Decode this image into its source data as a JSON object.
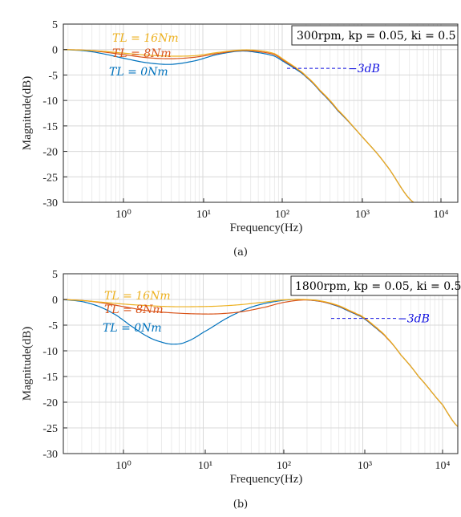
{
  "chart_data": [
    {
      "type": "line",
      "caption": "(a)",
      "xlabel": "Frequency(Hz)",
      "ylabel": "Magnitude(dB)",
      "x_scale": "log",
      "xlim": [
        0.15,
        20000
      ],
      "ylim": [
        -30,
        5
      ],
      "x_ticks": [
        "10⁰",
        "10¹",
        "10²",
        "10³",
        "10⁴"
      ],
      "y_ticks": [
        "5",
        "0",
        "-5",
        "-10",
        "-15",
        "-20",
        "-25",
        "-30"
      ],
      "grid": true,
      "legend_box": "300rpm, kp = 0.05, ki = 0.5",
      "marker_label": "−3dB",
      "marker_level_db": -3,
      "marker_x_range": [
        100,
        700
      ],
      "series": [
        {
          "name": "TL = 16Nm",
          "color": "#EDB120",
          "points": [
            [
              0.15,
              0
            ],
            [
              0.3,
              -0.1
            ],
            [
              0.5,
              -0.3
            ],
            [
              1,
              -0.7
            ],
            [
              2,
              -1.1
            ],
            [
              4,
              -1.3
            ],
            [
              8,
              -1.2
            ],
            [
              15,
              -0.6
            ],
            [
              30,
              -0.1
            ],
            [
              50,
              -0.2
            ],
            [
              80,
              -0.8
            ],
            [
              110,
              -2.2
            ],
            [
              150,
              -3.6
            ],
            [
              200,
              -5.2
            ],
            [
              300,
              -8
            ],
            [
              500,
              -11.8
            ],
            [
              1000,
              -17
            ],
            [
              2000,
              -22.5
            ],
            [
              4500,
              -30
            ]
          ]
        },
        {
          "name": "TL = 8Nm",
          "color": "#D95319",
          "points": [
            [
              0.15,
              0
            ],
            [
              0.3,
              -0.1
            ],
            [
              0.5,
              -0.4
            ],
            [
              1,
              -1.0
            ],
            [
              2,
              -1.6
            ],
            [
              4,
              -1.8
            ],
            [
              8,
              -1.5
            ],
            [
              15,
              -0.8
            ],
            [
              30,
              -0.2
            ],
            [
              50,
              -0.4
            ],
            [
              80,
              -1.0
            ],
            [
              110,
              -2.4
            ],
            [
              150,
              -3.7
            ],
            [
              200,
              -5.3
            ],
            [
              300,
              -8.1
            ],
            [
              500,
              -11.9
            ],
            [
              1000,
              -17
            ],
            [
              2000,
              -22.5
            ],
            [
              4500,
              -30
            ]
          ]
        },
        {
          "name": "TL = 0Nm",
          "color": "#0072BD",
          "points": [
            [
              0.15,
              0
            ],
            [
              0.3,
              -0.2
            ],
            [
              0.5,
              -0.7
            ],
            [
              1,
              -1.7
            ],
            [
              2,
              -2.6
            ],
            [
              4,
              -2.9
            ],
            [
              8,
              -2.2
            ],
            [
              15,
              -1.0
            ],
            [
              30,
              -0.3
            ],
            [
              50,
              -0.6
            ],
            [
              80,
              -1.3
            ],
            [
              110,
              -2.6
            ],
            [
              150,
              -3.9
            ],
            [
              200,
              -5.4
            ],
            [
              300,
              -8.2
            ],
            [
              500,
              -12
            ],
            [
              1000,
              -17
            ],
            [
              2000,
              -22.5
            ],
            [
              4500,
              -30
            ]
          ]
        }
      ]
    },
    {
      "type": "line",
      "caption": "(b)",
      "xlabel": "Frequency(Hz)",
      "ylabel": "Magnitude(dB)",
      "x_scale": "log",
      "xlim": [
        0.15,
        16000
      ],
      "ylim": [
        -30,
        5
      ],
      "x_ticks": [
        "10⁰",
        "10¹",
        "10²",
        "10³",
        "10⁴"
      ],
      "y_ticks": [
        "5",
        "0",
        "-5",
        "-10",
        "-15",
        "-20",
        "-25",
        "-30"
      ],
      "grid": true,
      "legend_box": "1800rpm, kp = 0.05, ki = 0.5",
      "marker_label": "−3dB",
      "marker_level_db": -3,
      "marker_x_range": [
        400,
        3000
      ],
      "series": [
        {
          "name": "TL = 16Nm",
          "color": "#EDB120",
          "points": [
            [
              0.15,
              0
            ],
            [
              0.3,
              -0.2
            ],
            [
              0.5,
              -0.5
            ],
            [
              1,
              -0.9
            ],
            [
              2,
              -1.2
            ],
            [
              4,
              -1.4
            ],
            [
              8,
              -1.4
            ],
            [
              15,
              -1.3
            ],
            [
              30,
              -1.0
            ],
            [
              60,
              -0.5
            ],
            [
              100,
              -0.1
            ],
            [
              180,
              0
            ],
            [
              300,
              -0.3
            ],
            [
              500,
              -1.2
            ],
            [
              800,
              -2.6
            ],
            [
              1000,
              -3.4
            ],
            [
              1500,
              -5.5
            ],
            [
              2000,
              -7.4
            ],
            [
              3000,
              -10.8
            ],
            [
              5000,
              -15
            ],
            [
              10000,
              -20.5
            ],
            [
              16000,
              -24.9
            ]
          ]
        },
        {
          "name": "TL = 8Nm",
          "color": "#D95319",
          "points": [
            [
              0.15,
              0
            ],
            [
              0.3,
              -0.2
            ],
            [
              0.5,
              -0.6
            ],
            [
              1,
              -1.4
            ],
            [
              2,
              -2.2
            ],
            [
              4,
              -2.6
            ],
            [
              8,
              -2.8
            ],
            [
              15,
              -2.8
            ],
            [
              30,
              -2.4
            ],
            [
              60,
              -1.5
            ],
            [
              100,
              -0.6
            ],
            [
              180,
              -0.1
            ],
            [
              300,
              -0.4
            ],
            [
              500,
              -1.3
            ],
            [
              800,
              -2.7
            ],
            [
              1000,
              -3.5
            ],
            [
              1500,
              -5.6
            ],
            [
              2000,
              -7.5
            ],
            [
              3000,
              -10.8
            ],
            [
              5000,
              -15
            ],
            [
              10000,
              -20.5
            ],
            [
              16000,
              -24.9
            ]
          ]
        },
        {
          "name": "TL = 0Nm",
          "color": "#0072BD",
          "points": [
            [
              0.15,
              0
            ],
            [
              0.3,
              -0.4
            ],
            [
              0.5,
              -1.4
            ],
            [
              0.8,
              -3.0
            ],
            [
              1.2,
              -5.0
            ],
            [
              2,
              -7.2
            ],
            [
              3,
              -8.3
            ],
            [
              4.2,
              -8.7
            ],
            [
              6,
              -8.3
            ],
            [
              10,
              -6.4
            ],
            [
              20,
              -3.6
            ],
            [
              40,
              -1.5
            ],
            [
              80,
              -0.4
            ],
            [
              150,
              0
            ],
            [
              300,
              -0.4
            ],
            [
              500,
              -1.4
            ],
            [
              800,
              -2.8
            ],
            [
              1000,
              -3.6
            ],
            [
              1500,
              -5.7
            ],
            [
              2000,
              -7.5
            ],
            [
              3000,
              -10.8
            ],
            [
              5000,
              -15
            ],
            [
              10000,
              -20.5
            ],
            [
              16000,
              -24.9
            ]
          ]
        }
      ]
    }
  ]
}
